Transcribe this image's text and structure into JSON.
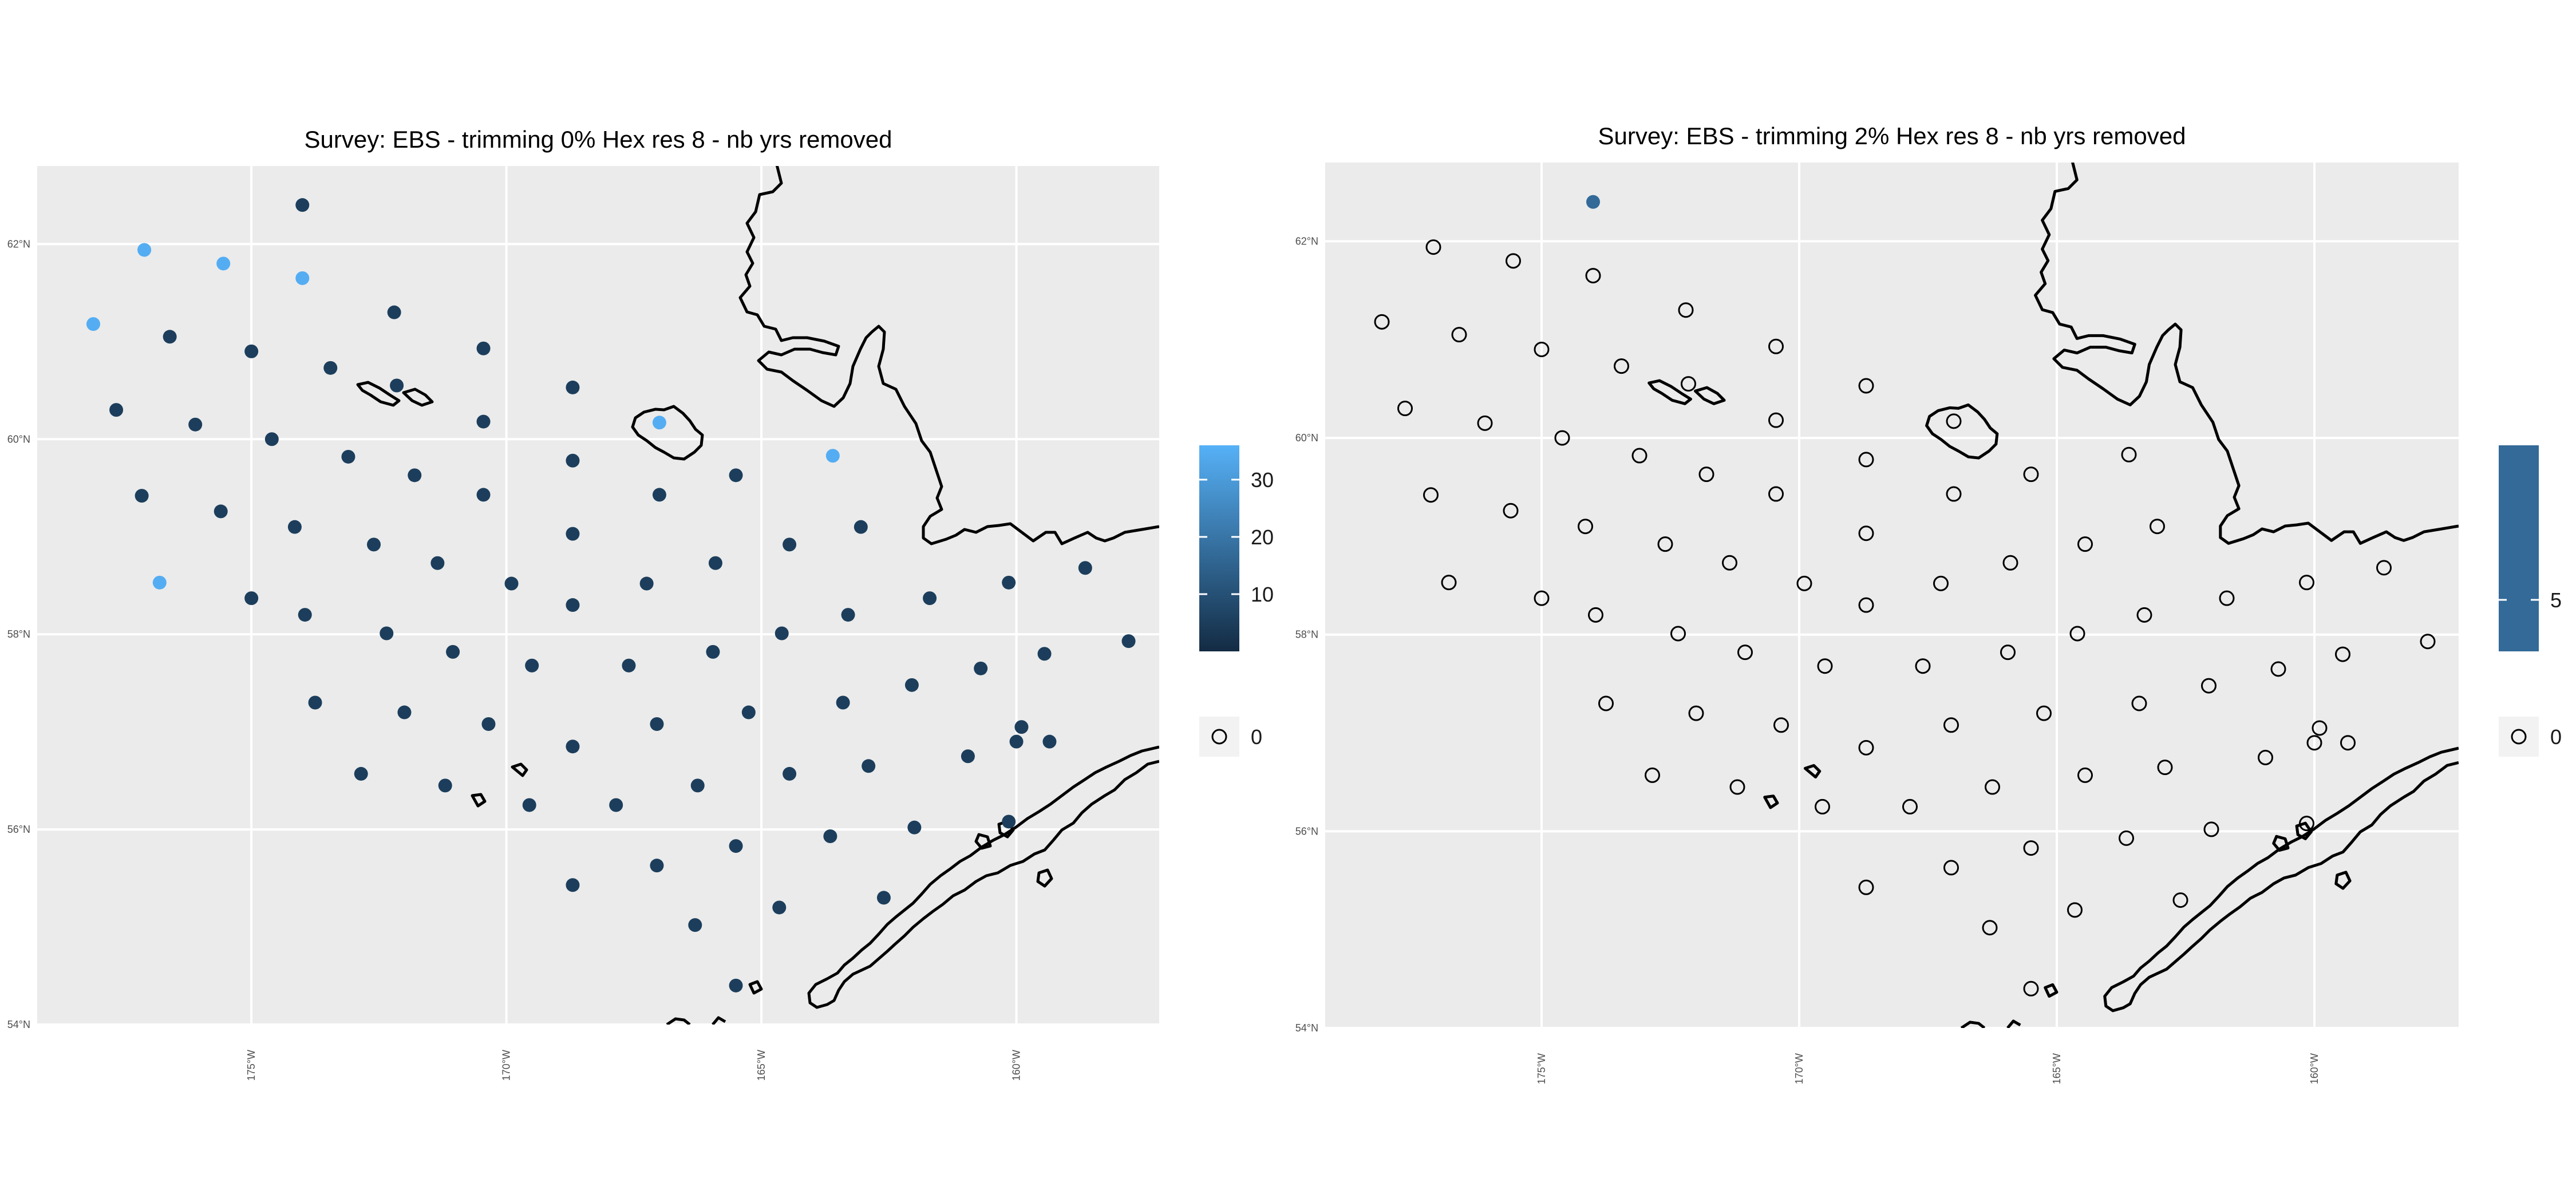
{
  "chart_data": [
    {
      "type": "scatter",
      "title": "Survey: EBS - trimming 0% Hex res 8 - nb yrs removed",
      "xlabel": "",
      "ylabel": "",
      "x_ticks": [
        "175°W",
        "170°W",
        "165°W",
        "160°W"
      ],
      "y_ticks": [
        "54°N",
        "56°N",
        "58°N",
        "60°N",
        "62°N"
      ],
      "xlim": [
        -179.2,
        -157.2
      ],
      "ylim": [
        54.0,
        62.8
      ],
      "grid": true,
      "legend_position": "right",
      "colorbar": {
        "ticks": [
          10,
          20,
          30
        ],
        "range": [
          0,
          36
        ],
        "low_color": "#132b43",
        "high_color": "#56b1f7"
      },
      "zero_legend": {
        "label": "0"
      },
      "points": [
        {
          "x": -174.0,
          "y": 62.4,
          "v": 5
        },
        {
          "x": -177.1,
          "y": 61.94,
          "v": 35
        },
        {
          "x": -175.55,
          "y": 61.8,
          "v": 35
        },
        {
          "x": -174.0,
          "y": 61.65,
          "v": 35
        },
        {
          "x": -178.1,
          "y": 61.18,
          "v": 35
        },
        {
          "x": -176.6,
          "y": 61.05,
          "v": 5
        },
        {
          "x": -175.0,
          "y": 60.9,
          "v": 5
        },
        {
          "x": -172.2,
          "y": 61.3,
          "v": 5
        },
        {
          "x": -170.45,
          "y": 60.93,
          "v": 5
        },
        {
          "x": -173.45,
          "y": 60.73,
          "v": 5
        },
        {
          "x": -172.15,
          "y": 60.55,
          "v": 5
        },
        {
          "x": -168.7,
          "y": 60.53,
          "v": 5
        },
        {
          "x": -177.65,
          "y": 60.3,
          "v": 5
        },
        {
          "x": -176.1,
          "y": 60.15,
          "v": 5
        },
        {
          "x": -174.6,
          "y": 60.0,
          "v": 5
        },
        {
          "x": -170.45,
          "y": 60.18,
          "v": 5
        },
        {
          "x": -167.0,
          "y": 60.17,
          "v": 35
        },
        {
          "x": -163.6,
          "y": 59.83,
          "v": 35
        },
        {
          "x": -173.1,
          "y": 59.82,
          "v": 5
        },
        {
          "x": -168.7,
          "y": 59.78,
          "v": 5
        },
        {
          "x": -171.8,
          "y": 59.63,
          "v": 5
        },
        {
          "x": -165.5,
          "y": 59.63,
          "v": 5
        },
        {
          "x": -177.15,
          "y": 59.42,
          "v": 5
        },
        {
          "x": -170.45,
          "y": 59.43,
          "v": 5
        },
        {
          "x": -167.0,
          "y": 59.43,
          "v": 5
        },
        {
          "x": -175.6,
          "y": 59.26,
          "v": 5
        },
        {
          "x": -174.15,
          "y": 59.1,
          "v": 5
        },
        {
          "x": -168.7,
          "y": 59.03,
          "v": 5
        },
        {
          "x": -163.05,
          "y": 59.1,
          "v": 5
        },
        {
          "x": -172.6,
          "y": 58.92,
          "v": 5
        },
        {
          "x": -164.45,
          "y": 58.92,
          "v": 5
        },
        {
          "x": -171.35,
          "y": 58.73,
          "v": 5
        },
        {
          "x": -165.9,
          "y": 58.73,
          "v": 5
        },
        {
          "x": -158.65,
          "y": 58.68,
          "v": 5
        },
        {
          "x": -176.8,
          "y": 58.53,
          "v": 35
        },
        {
          "x": -169.9,
          "y": 58.52,
          "v": 5
        },
        {
          "x": -167.25,
          "y": 58.52,
          "v": 5
        },
        {
          "x": -160.15,
          "y": 58.53,
          "v": 5
        },
        {
          "x": -175.0,
          "y": 58.37,
          "v": 5
        },
        {
          "x": -161.7,
          "y": 58.37,
          "v": 5
        },
        {
          "x": -168.7,
          "y": 58.3,
          "v": 5
        },
        {
          "x": -173.95,
          "y": 58.2,
          "v": 5
        },
        {
          "x": -163.3,
          "y": 58.2,
          "v": 5
        },
        {
          "x": -172.35,
          "y": 58.01,
          "v": 5
        },
        {
          "x": -164.6,
          "y": 58.01,
          "v": 5
        },
        {
          "x": -157.8,
          "y": 57.93,
          "v": 5
        },
        {
          "x": -171.05,
          "y": 57.82,
          "v": 5
        },
        {
          "x": -165.95,
          "y": 57.82,
          "v": 5
        },
        {
          "x": -159.45,
          "y": 57.8,
          "v": 5
        },
        {
          "x": -169.5,
          "y": 57.68,
          "v": 5
        },
        {
          "x": -167.6,
          "y": 57.68,
          "v": 5
        },
        {
          "x": -160.7,
          "y": 57.65,
          "v": 5
        },
        {
          "x": -162.05,
          "y": 57.48,
          "v": 5
        },
        {
          "x": -173.75,
          "y": 57.3,
          "v": 5
        },
        {
          "x": -163.4,
          "y": 57.3,
          "v": 5
        },
        {
          "x": -172.0,
          "y": 57.2,
          "v": 5
        },
        {
          "x": -165.25,
          "y": 57.2,
          "v": 5
        },
        {
          "x": -170.35,
          "y": 57.08,
          "v": 5
        },
        {
          "x": -167.05,
          "y": 57.08,
          "v": 5
        },
        {
          "x": -159.9,
          "y": 57.05,
          "v": 5
        },
        {
          "x": -159.35,
          "y": 56.9,
          "v": 5
        },
        {
          "x": -160.0,
          "y": 56.9,
          "v": 5
        },
        {
          "x": -168.7,
          "y": 56.85,
          "v": 5
        },
        {
          "x": -160.95,
          "y": 56.75,
          "v": 5
        },
        {
          "x": -162.9,
          "y": 56.65,
          "v": 5
        },
        {
          "x": -172.85,
          "y": 56.57,
          "v": 5
        },
        {
          "x": -164.45,
          "y": 56.57,
          "v": 5
        },
        {
          "x": -171.2,
          "y": 56.45,
          "v": 5
        },
        {
          "x": -166.25,
          "y": 56.45,
          "v": 5
        },
        {
          "x": -169.55,
          "y": 56.25,
          "v": 5
        },
        {
          "x": -167.85,
          "y": 56.25,
          "v": 5
        },
        {
          "x": -160.15,
          "y": 56.08,
          "v": 5
        },
        {
          "x": -162.0,
          "y": 56.02,
          "v": 5
        },
        {
          "x": -163.65,
          "y": 55.93,
          "v": 5
        },
        {
          "x": -165.5,
          "y": 55.83,
          "v": 5
        },
        {
          "x": -167.05,
          "y": 55.63,
          "v": 5
        },
        {
          "x": -168.7,
          "y": 55.43,
          "v": 5
        },
        {
          "x": -162.6,
          "y": 55.3,
          "v": 5
        },
        {
          "x": -164.65,
          "y": 55.2,
          "v": 5
        },
        {
          "x": -166.3,
          "y": 55.02,
          "v": 5
        },
        {
          "x": -165.5,
          "y": 54.4,
          "v": 5
        }
      ]
    },
    {
      "type": "scatter",
      "title": "Survey: EBS - trimming 2% Hex res 8 - nb yrs removed",
      "xlabel": "",
      "ylabel": "",
      "x_ticks": [
        "175°W",
        "170°W",
        "165°W",
        "160°W"
      ],
      "y_ticks": [
        "54°N",
        "56°N",
        "58°N",
        "60°N",
        "62°N"
      ],
      "xlim": [
        -179.2,
        -157.2
      ],
      "ylim": [
        54.0,
        62.8
      ],
      "grid": true,
      "legend_position": "right",
      "colorbar": {
        "ticks": [
          5
        ],
        "range": [
          4,
          8
        ],
        "low_color": "#336a98",
        "high_color": "#336a98"
      },
      "zero_legend": {
        "label": "0"
      },
      "points": [
        {
          "x": -174.0,
          "y": 62.4,
          "v": 6
        },
        {
          "x": -177.1,
          "y": 61.94,
          "v": 0
        },
        {
          "x": -175.55,
          "y": 61.8,
          "v": 0
        },
        {
          "x": -174.0,
          "y": 61.65,
          "v": 0
        },
        {
          "x": -178.1,
          "y": 61.18,
          "v": 0
        },
        {
          "x": -176.6,
          "y": 61.05,
          "v": 0
        },
        {
          "x": -175.0,
          "y": 60.9,
          "v": 0
        },
        {
          "x": -172.2,
          "y": 61.3,
          "v": 0
        },
        {
          "x": -170.45,
          "y": 60.93,
          "v": 0
        },
        {
          "x": -173.45,
          "y": 60.73,
          "v": 0
        },
        {
          "x": -172.15,
          "y": 60.55,
          "v": 0
        },
        {
          "x": -168.7,
          "y": 60.53,
          "v": 0
        },
        {
          "x": -177.65,
          "y": 60.3,
          "v": 0
        },
        {
          "x": -176.1,
          "y": 60.15,
          "v": 0
        },
        {
          "x": -174.6,
          "y": 60.0,
          "v": 0
        },
        {
          "x": -170.45,
          "y": 60.18,
          "v": 0
        },
        {
          "x": -167.0,
          "y": 60.17,
          "v": 0
        },
        {
          "x": -163.6,
          "y": 59.83,
          "v": 0
        },
        {
          "x": -173.1,
          "y": 59.82,
          "v": 0
        },
        {
          "x": -168.7,
          "y": 59.78,
          "v": 0
        },
        {
          "x": -171.8,
          "y": 59.63,
          "v": 0
        },
        {
          "x": -165.5,
          "y": 59.63,
          "v": 0
        },
        {
          "x": -177.15,
          "y": 59.42,
          "v": 0
        },
        {
          "x": -170.45,
          "y": 59.43,
          "v": 0
        },
        {
          "x": -167.0,
          "y": 59.43,
          "v": 0
        },
        {
          "x": -175.6,
          "y": 59.26,
          "v": 0
        },
        {
          "x": -174.15,
          "y": 59.1,
          "v": 0
        },
        {
          "x": -168.7,
          "y": 59.03,
          "v": 0
        },
        {
          "x": -163.05,
          "y": 59.1,
          "v": 0
        },
        {
          "x": -172.6,
          "y": 58.92,
          "v": 0
        },
        {
          "x": -164.45,
          "y": 58.92,
          "v": 0
        },
        {
          "x": -171.35,
          "y": 58.73,
          "v": 0
        },
        {
          "x": -165.9,
          "y": 58.73,
          "v": 0
        },
        {
          "x": -158.65,
          "y": 58.68,
          "v": 0
        },
        {
          "x": -176.8,
          "y": 58.53,
          "v": 0
        },
        {
          "x": -169.9,
          "y": 58.52,
          "v": 0
        },
        {
          "x": -167.25,
          "y": 58.52,
          "v": 0
        },
        {
          "x": -160.15,
          "y": 58.53,
          "v": 0
        },
        {
          "x": -175.0,
          "y": 58.37,
          "v": 0
        },
        {
          "x": -161.7,
          "y": 58.37,
          "v": 0
        },
        {
          "x": -168.7,
          "y": 58.3,
          "v": 0
        },
        {
          "x": -173.95,
          "y": 58.2,
          "v": 0
        },
        {
          "x": -163.3,
          "y": 58.2,
          "v": 0
        },
        {
          "x": -172.35,
          "y": 58.01,
          "v": 0
        },
        {
          "x": -164.6,
          "y": 58.01,
          "v": 0
        },
        {
          "x": -157.8,
          "y": 57.93,
          "v": 0
        },
        {
          "x": -171.05,
          "y": 57.82,
          "v": 0
        },
        {
          "x": -165.95,
          "y": 57.82,
          "v": 0
        },
        {
          "x": -159.45,
          "y": 57.8,
          "v": 0
        },
        {
          "x": -169.5,
          "y": 57.68,
          "v": 0
        },
        {
          "x": -167.6,
          "y": 57.68,
          "v": 0
        },
        {
          "x": -160.7,
          "y": 57.65,
          "v": 0
        },
        {
          "x": -162.05,
          "y": 57.48,
          "v": 0
        },
        {
          "x": -173.75,
          "y": 57.3,
          "v": 0
        },
        {
          "x": -163.4,
          "y": 57.3,
          "v": 0
        },
        {
          "x": -172.0,
          "y": 57.2,
          "v": 0
        },
        {
          "x": -165.25,
          "y": 57.2,
          "v": 0
        },
        {
          "x": -170.35,
          "y": 57.08,
          "v": 0
        },
        {
          "x": -167.05,
          "y": 57.08,
          "v": 0
        },
        {
          "x": -159.9,
          "y": 57.05,
          "v": 0
        },
        {
          "x": -159.35,
          "y": 56.9,
          "v": 0
        },
        {
          "x": -160.0,
          "y": 56.9,
          "v": 0
        },
        {
          "x": -168.7,
          "y": 56.85,
          "v": 0
        },
        {
          "x": -160.95,
          "y": 56.75,
          "v": 0
        },
        {
          "x": -162.9,
          "y": 56.65,
          "v": 0
        },
        {
          "x": -172.85,
          "y": 56.57,
          "v": 0
        },
        {
          "x": -164.45,
          "y": 56.57,
          "v": 0
        },
        {
          "x": -171.2,
          "y": 56.45,
          "v": 0
        },
        {
          "x": -166.25,
          "y": 56.45,
          "v": 0
        },
        {
          "x": -169.55,
          "y": 56.25,
          "v": 0
        },
        {
          "x": -167.85,
          "y": 56.25,
          "v": 0
        },
        {
          "x": -160.15,
          "y": 56.08,
          "v": 0
        },
        {
          "x": -162.0,
          "y": 56.02,
          "v": 0
        },
        {
          "x": -163.65,
          "y": 55.93,
          "v": 0
        },
        {
          "x": -165.5,
          "y": 55.83,
          "v": 0
        },
        {
          "x": -167.05,
          "y": 55.63,
          "v": 0
        },
        {
          "x": -168.7,
          "y": 55.43,
          "v": 0
        },
        {
          "x": -162.6,
          "y": 55.3,
          "v": 0
        },
        {
          "x": -164.65,
          "y": 55.2,
          "v": 0
        },
        {
          "x": -166.3,
          "y": 55.02,
          "v": 0
        },
        {
          "x": -165.5,
          "y": 54.4,
          "v": 0
        }
      ]
    }
  ],
  "colors": {
    "panel_background": "#ebebeb",
    "grid": "#ffffff",
    "coastline": "#000000",
    "open_point_stroke": "#000000"
  }
}
